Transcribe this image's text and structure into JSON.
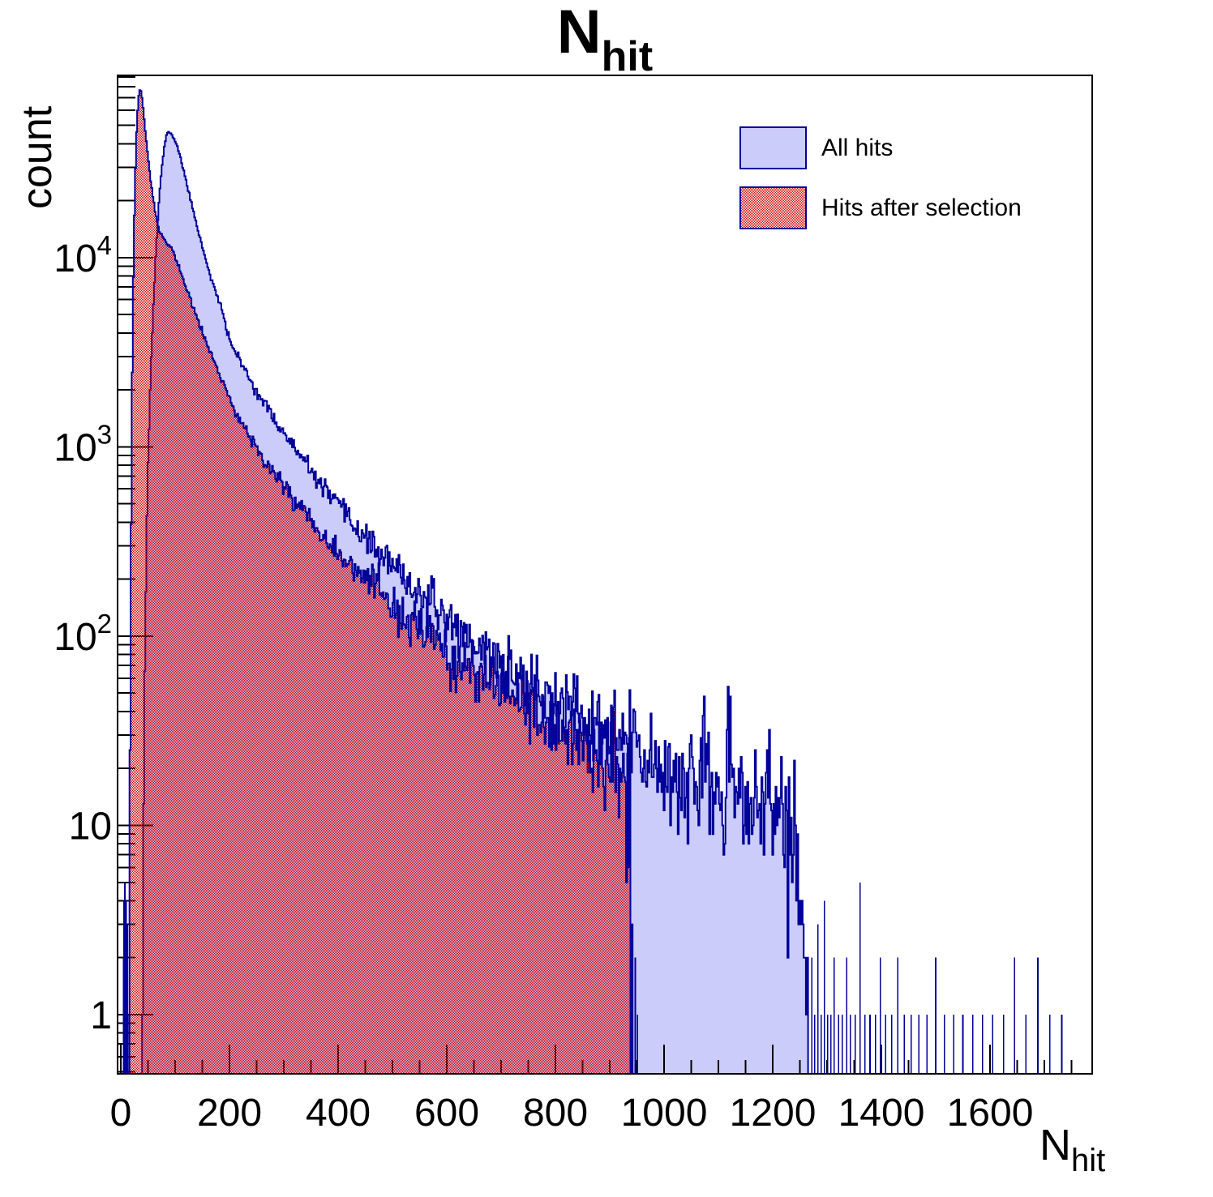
{
  "title": {
    "main": "N",
    "sub": "hit"
  },
  "axes": {
    "y_label": "count",
    "x_label_main": "N",
    "x_label_sub": "hit",
    "y_tick_labels": [
      {
        "t": "1"
      },
      {
        "t": "10"
      },
      {
        "t": "10",
        "e": "2"
      },
      {
        "t": "10",
        "e": "3"
      },
      {
        "t": "10",
        "e": "4"
      }
    ],
    "x_tick_labels": [
      "0",
      "200",
      "400",
      "600",
      "800",
      "1000",
      "1200",
      "1400",
      "1600"
    ]
  },
  "legend": {
    "items": [
      {
        "label": "All hits",
        "swatch": "solid-lavender"
      },
      {
        "label": "Hits after selection",
        "swatch": "red-checker"
      }
    ]
  },
  "colors": {
    "hist_fill_blue": "#ccccfa",
    "hist_line_navy": "#00009a",
    "checker_red": "#cc0000",
    "axis_black": "#000000",
    "background": "#ffffff"
  },
  "chart_data": {
    "type": "area",
    "title": "N_hit",
    "xlabel": "N_hit",
    "ylabel": "count",
    "grid": false,
    "legend_position": "top-right",
    "x_axis": {
      "min": -6,
      "max": 1788,
      "major_tick_step": 200,
      "minor_tick_step": 50,
      "major_tick_values": [
        0,
        200,
        400,
        600,
        800,
        1000,
        1200,
        1400,
        1600
      ]
    },
    "y_axis": {
      "scale": "log",
      "min": 0.487,
      "max": 91800,
      "decades": [
        1,
        10,
        100,
        1000,
        10000
      ]
    },
    "bin_width": 2,
    "series": [
      {
        "name": "All hits",
        "style": "solid",
        "peak": {
          "x": 88,
          "count": 46600
        },
        "noise": 1.45,
        "seed": 11,
        "envelope": [
          [
            39,
            1
          ],
          [
            41,
            8
          ],
          [
            43,
            40
          ],
          [
            45,
            130
          ],
          [
            47,
            350
          ],
          [
            50,
            800
          ],
          [
            53,
            1600
          ],
          [
            56,
            3000
          ],
          [
            60,
            5600
          ],
          [
            64,
            10000
          ],
          [
            68,
            16000
          ],
          [
            72,
            23000
          ],
          [
            76,
            31000
          ],
          [
            80,
            38500
          ],
          [
            84,
            44000
          ],
          [
            88,
            46600
          ],
          [
            92,
            45200
          ],
          [
            98,
            42500
          ],
          [
            104,
            38800
          ],
          [
            110,
            33500
          ],
          [
            117,
            27800
          ],
          [
            124,
            22800
          ],
          [
            131,
            18800
          ],
          [
            139,
            15200
          ],
          [
            147,
            12300
          ],
          [
            156,
            9900
          ],
          [
            165,
            8000
          ],
          [
            175,
            6500
          ],
          [
            186,
            5300
          ],
          [
            197,
            3900
          ],
          [
            209,
            3250
          ],
          [
            222,
            2750
          ],
          [
            236,
            2320
          ],
          [
            251,
            1950
          ],
          [
            267,
            1640
          ],
          [
            284,
            1380
          ],
          [
            302,
            1160
          ],
          [
            321,
            970
          ],
          [
            341,
            805
          ],
          [
            362,
            668
          ],
          [
            384,
            554
          ],
          [
            407,
            460
          ],
          [
            431,
            382
          ],
          [
            456,
            317
          ],
          [
            482,
            263
          ],
          [
            509,
            219
          ],
          [
            537,
            182
          ],
          [
            566,
            152
          ],
          [
            596,
            127
          ],
          [
            627,
            106
          ],
          [
            659,
            89
          ],
          [
            692,
            75
          ],
          [
            726,
            63
          ],
          [
            761,
            53
          ],
          [
            797,
            45
          ],
          [
            834,
            38
          ],
          [
            872,
            33
          ],
          [
            911,
            28
          ],
          [
            951,
            24
          ],
          [
            992,
            21
          ],
          [
            1034,
            18
          ],
          [
            1077,
            16
          ],
          [
            1121,
            14.5
          ],
          [
            1166,
            13.5
          ],
          [
            1200,
            13
          ],
          [
            1222,
            11
          ],
          [
            1238,
            8
          ],
          [
            1250,
            5
          ],
          [
            1260,
            3
          ],
          [
            1266,
            2
          ]
        ],
        "spikes": [
          [
            5,
            2
          ],
          [
            6,
            4
          ],
          [
            7,
            5
          ],
          [
            8,
            5
          ],
          [
            9,
            3
          ],
          [
            10,
            4
          ],
          [
            11,
            2
          ],
          [
            12,
            3
          ],
          [
            13,
            1
          ],
          [
            1272,
            2
          ],
          [
            1277,
            1
          ],
          [
            1283,
            3
          ],
          [
            1289,
            1
          ],
          [
            1295,
            4
          ],
          [
            1301,
            1
          ],
          [
            1307,
            1
          ],
          [
            1313,
            2
          ],
          [
            1321,
            1
          ],
          [
            1328,
            1
          ],
          [
            1336,
            2
          ],
          [
            1343,
            1
          ],
          [
            1352,
            1
          ],
          [
            1361,
            5
          ],
          [
            1370,
            1
          ],
          [
            1379,
            1
          ],
          [
            1389,
            1
          ],
          [
            1398,
            2
          ],
          [
            1408,
            1
          ],
          [
            1419,
            1
          ],
          [
            1430,
            2
          ],
          [
            1442,
            1
          ],
          [
            1455,
            1
          ],
          [
            1469,
            1
          ],
          [
            1484,
            1
          ],
          [
            1500,
            2
          ],
          [
            1516,
            1
          ],
          [
            1533,
            1
          ],
          [
            1550,
            1
          ],
          [
            1568,
            1
          ],
          [
            1586,
            1
          ],
          [
            1605,
            1
          ],
          [
            1625,
            1
          ],
          [
            1645,
            2
          ],
          [
            1666,
            1
          ],
          [
            1688,
            2
          ],
          [
            1710,
            1
          ],
          [
            1732,
            1
          ]
        ]
      },
      {
        "name": "Hits after selection",
        "style": "checker",
        "peak": {
          "x": 36,
          "count": 78000
        },
        "cutoff_x": 943,
        "noise": 1.45,
        "seed": 23,
        "envelope": [
          [
            16,
            1
          ],
          [
            17,
            10
          ],
          [
            18,
            80
          ],
          [
            19,
            400
          ],
          [
            20,
            1200
          ],
          [
            22,
            5000
          ],
          [
            24,
            12000
          ],
          [
            26,
            23000
          ],
          [
            28,
            38000
          ],
          [
            30,
            54000
          ],
          [
            32,
            67000
          ],
          [
            34,
            76000
          ],
          [
            36,
            78000
          ],
          [
            38,
            74000
          ],
          [
            40,
            66000
          ],
          [
            43,
            54000
          ],
          [
            46,
            44000
          ],
          [
            50,
            34000
          ],
          [
            54,
            27000
          ],
          [
            59,
            21000
          ],
          [
            64,
            17000
          ],
          [
            70,
            14000
          ],
          [
            78,
            12600
          ],
          [
            87,
            11600
          ],
          [
            95,
            11100
          ],
          [
            105,
            9200
          ],
          [
            116,
            7500
          ],
          [
            128,
            6000
          ],
          [
            140,
            4800
          ],
          [
            153,
            3850
          ],
          [
            166,
            3100
          ],
          [
            180,
            2450
          ],
          [
            194,
            1950
          ],
          [
            208,
            1600
          ],
          [
            223,
            1330
          ],
          [
            239,
            1110
          ],
          [
            256,
            930
          ],
          [
            274,
            780
          ],
          [
            293,
            660
          ],
          [
            313,
            560
          ],
          [
            334,
            470
          ],
          [
            356,
            395
          ],
          [
            379,
            330
          ],
          [
            403,
            275
          ],
          [
            428,
            230
          ],
          [
            454,
            193
          ],
          [
            481,
            162
          ],
          [
            509,
            136
          ],
          [
            538,
            114
          ],
          [
            568,
            96
          ],
          [
            599,
            81
          ],
          [
            631,
            69
          ],
          [
            664,
            59
          ],
          [
            698,
            50
          ],
          [
            733,
            43
          ],
          [
            769,
            37
          ],
          [
            806,
            32
          ],
          [
            844,
            28
          ],
          [
            883,
            25
          ],
          [
            905,
            23
          ],
          [
            920,
            21
          ],
          [
            928,
            14
          ],
          [
            933,
            7
          ],
          [
            937,
            3
          ],
          [
            941,
            1.5
          ],
          [
            943,
            0.6
          ]
        ],
        "spikes": [
          [
            947,
            2
          ],
          [
            951,
            1
          ]
        ]
      }
    ]
  }
}
